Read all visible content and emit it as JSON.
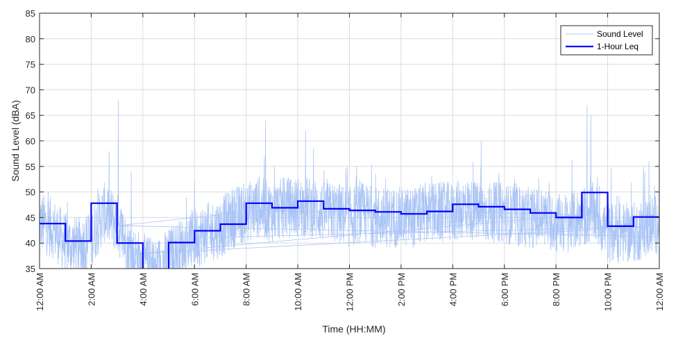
{
  "chart_data": {
    "type": "line",
    "title": "",
    "xlabel": "Time (HH:MM)",
    "ylabel": "Sound Level (dBA)",
    "xlim": [
      0,
      24
    ],
    "ylim": [
      35,
      85
    ],
    "yticks": [
      35,
      40,
      45,
      50,
      55,
      60,
      65,
      70,
      75,
      80,
      85
    ],
    "xtick_labels": [
      "12:00 AM",
      "2:00 AM",
      "4:00 AM",
      "6:00 AM",
      "8:00 AM",
      "10:00 AM",
      "12:00 PM",
      "2:00 PM",
      "4:00 PM",
      "6:00 PM",
      "8:00 PM",
      "10:00 PM",
      "12:00 AM"
    ],
    "grid": true,
    "legend_position": "top-right",
    "series": [
      {
        "name": "Sound Level",
        "style": "thin-line",
        "color": "#a9c4f5",
        "x_hours": [
          0,
          0.5,
          1,
          1.5,
          2,
          2.5,
          3,
          3.5,
          4,
          4.5,
          5,
          5.5,
          6,
          6.5,
          7,
          7.5,
          8,
          8.5,
          9,
          9.5,
          10,
          10.5,
          11,
          11.5,
          12,
          12.5,
          13,
          13.5,
          14,
          14.5,
          15,
          15.5,
          16,
          16.5,
          17,
          17.5,
          18,
          18.5,
          19,
          19.5,
          20,
          20.5,
          21,
          21.5,
          22,
          22.5,
          23,
          23.5,
          24
        ],
        "values": [
          44,
          43,
          40,
          39,
          41,
          46,
          44,
          38,
          36,
          35,
          37,
          39,
          41,
          42,
          43,
          45,
          46,
          47,
          46,
          47,
          47,
          47,
          46,
          46,
          45,
          46,
          45,
          45,
          45,
          45,
          46,
          46,
          46,
          47,
          46,
          46,
          46,
          45,
          45,
          45,
          44,
          44,
          45,
          46,
          42,
          42,
          42,
          43,
          44
        ],
        "peaks": [
          {
            "x": 3.05,
            "y": 68
          },
          {
            "x": 8.75,
            "y": 64
          },
          {
            "x": 10.3,
            "y": 62
          },
          {
            "x": 9.1,
            "y": 55
          },
          {
            "x": 17.1,
            "y": 60
          },
          {
            "x": 21.2,
            "y": 67
          },
          {
            "x": 21.35,
            "y": 65
          },
          {
            "x": 3.55,
            "y": 54
          },
          {
            "x": 23.6,
            "y": 56
          },
          {
            "x": 6.0,
            "y": 52
          }
        ]
      },
      {
        "name": "1-Hour Leq",
        "style": "step",
        "color": "#0000ff",
        "hours": [
          0,
          1,
          2,
          3,
          4,
          5,
          6,
          7,
          8,
          9,
          10,
          11,
          12,
          13,
          14,
          15,
          16,
          17,
          18,
          19,
          20,
          21,
          22,
          23
        ],
        "values": [
          43.8,
          40.4,
          47.8,
          40.0,
          34.6,
          40.1,
          42.4,
          43.7,
          47.8,
          46.9,
          48.2,
          46.7,
          46.4,
          46.1,
          45.7,
          46.2,
          47.6,
          47.1,
          46.6,
          45.9,
          45.0,
          49.9,
          43.3,
          45.1
        ]
      }
    ]
  }
}
